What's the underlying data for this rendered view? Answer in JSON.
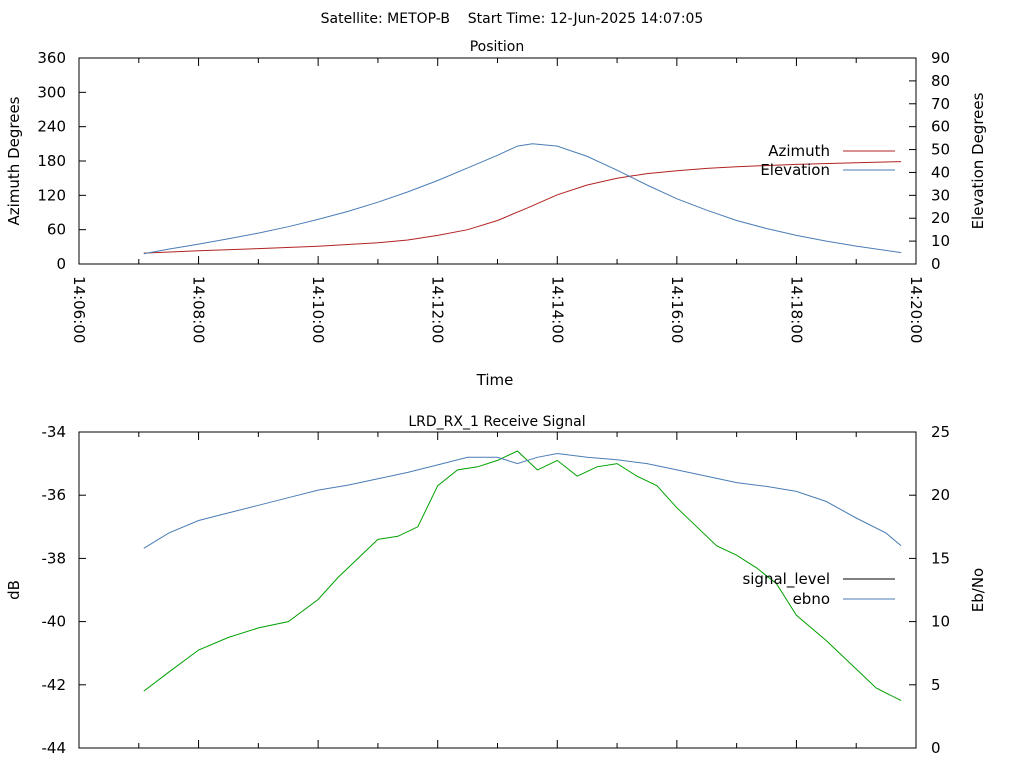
{
  "header": "Satellite: METOP-B    Start Time: 12-Jun-2025 14:07:05",
  "chart_data": [
    {
      "type": "line",
      "title": "Position",
      "xlabel": "Time",
      "ylabel": "Azimuth Degrees",
      "y2label": "Elevation Degrees",
      "x_ticks": [
        "14:06:00",
        "14:08:00",
        "14:10:00",
        "14:12:00",
        "14:14:00",
        "14:16:00",
        "14:18:00",
        "14:20:00"
      ],
      "xlim": [
        "14:06:00",
        "14:20:00"
      ],
      "ylim": [
        0,
        360
      ],
      "y_ticks": [
        0,
        60,
        120,
        180,
        240,
        300,
        360
      ],
      "y2lim": [
        0,
        90
      ],
      "y2_ticks": [
        0,
        10,
        20,
        30,
        40,
        50,
        60,
        70,
        80,
        90
      ],
      "legend_position": "right",
      "grid": false,
      "series": [
        {
          "name": "Azimuth",
          "axis": "y",
          "color": "#b22222",
          "x": [
            "14:07:05",
            "14:08:00",
            "14:09:00",
            "14:10:00",
            "14:11:00",
            "14:11:30",
            "14:12:00",
            "14:12:30",
            "14:13:00",
            "14:13:30",
            "14:14:00",
            "14:14:30",
            "14:15:00",
            "14:15:30",
            "14:16:00",
            "14:16:30",
            "14:17:00",
            "14:18:00",
            "14:19:00",
            "14:19:45"
          ],
          "values": [
            19,
            23,
            27,
            31,
            37,
            42,
            50,
            60,
            76,
            98,
            121,
            138,
            150,
            158,
            163,
            167,
            170,
            174,
            177,
            179
          ]
        },
        {
          "name": "Elevation",
          "axis": "y2",
          "color": "#4a7db5",
          "x": [
            "14:07:05",
            "14:07:30",
            "14:08:00",
            "14:08:30",
            "14:09:00",
            "14:09:30",
            "14:10:00",
            "14:10:30",
            "14:11:00",
            "14:11:30",
            "14:12:00",
            "14:12:30",
            "14:13:00",
            "14:13:20",
            "14:13:35",
            "14:14:00",
            "14:14:30",
            "14:15:00",
            "14:15:30",
            "14:16:00",
            "14:16:30",
            "14:17:00",
            "14:17:30",
            "14:18:00",
            "14:18:30",
            "14:19:00",
            "14:19:45"
          ],
          "values": [
            4.5,
            6.5,
            8.7,
            11.0,
            13.5,
            16.3,
            19.5,
            23.0,
            27.0,
            31.5,
            36.5,
            42.0,
            47.5,
            51.5,
            52.5,
            51.5,
            47.0,
            41.0,
            34.5,
            28.5,
            23.5,
            19.0,
            15.5,
            12.5,
            10.0,
            7.8,
            5.0
          ]
        }
      ]
    },
    {
      "type": "line",
      "title": "LRD_RX_1 Receive Signal",
      "xlabel": "",
      "ylabel": "dB",
      "y2label": "Eb/No",
      "x_ticks": [],
      "xlim": [
        "14:06:00",
        "14:20:00"
      ],
      "ylim": [
        -44,
        -34
      ],
      "y_ticks": [
        -44,
        -42,
        -40,
        -38,
        -36,
        -34
      ],
      "y2lim": [
        0,
        25
      ],
      "y2_ticks": [
        0,
        5,
        10,
        15,
        20,
        25
      ],
      "legend_position": "right",
      "grid": false,
      "series": [
        {
          "name": "signal_level",
          "axis": "y",
          "color": "#00a000",
          "legend_color": "#000000",
          "x": [
            "14:07:05",
            "14:07:30",
            "14:08:00",
            "14:08:30",
            "14:09:00",
            "14:09:30",
            "14:10:00",
            "14:10:20",
            "14:10:40",
            "14:11:00",
            "14:11:20",
            "14:11:40",
            "14:12:00",
            "14:12:20",
            "14:12:40",
            "14:13:00",
            "14:13:20",
            "14:13:40",
            "14:14:00",
            "14:14:20",
            "14:14:40",
            "14:15:00",
            "14:15:20",
            "14:15:40",
            "14:16:00",
            "14:16:20",
            "14:16:40",
            "14:17:00",
            "14:17:20",
            "14:17:40",
            "14:18:00",
            "14:18:30",
            "14:19:00",
            "14:19:20",
            "14:19:45"
          ],
          "values": [
            -42.2,
            -41.6,
            -40.9,
            -40.5,
            -40.2,
            -40.0,
            -39.3,
            -38.6,
            -38.0,
            -37.4,
            -37.3,
            -37.0,
            -35.7,
            -35.2,
            -35.1,
            -34.9,
            -34.6,
            -35.2,
            -34.9,
            -35.4,
            -35.1,
            -35.0,
            -35.4,
            -35.7,
            -36.4,
            -37.0,
            -37.6,
            -37.9,
            -38.3,
            -38.8,
            -39.8,
            -40.6,
            -41.5,
            -42.1,
            -42.5
          ]
        },
        {
          "name": "ebno",
          "axis": "y2",
          "color": "#4a7db5",
          "x": [
            "14:07:05",
            "14:07:30",
            "14:08:00",
            "14:08:30",
            "14:09:00",
            "14:09:30",
            "14:10:00",
            "14:10:30",
            "14:11:00",
            "14:11:30",
            "14:12:00",
            "14:12:30",
            "14:13:00",
            "14:13:20",
            "14:13:40",
            "14:14:00",
            "14:14:30",
            "14:15:00",
            "14:15:30",
            "14:16:00",
            "14:16:30",
            "14:17:00",
            "14:17:30",
            "14:18:00",
            "14:18:30",
            "14:19:00",
            "14:19:30",
            "14:19:45"
          ],
          "values": [
            15.8,
            17.0,
            18.0,
            18.6,
            19.2,
            19.8,
            20.4,
            20.8,
            21.3,
            21.8,
            22.4,
            23.0,
            23.0,
            22.5,
            23.0,
            23.3,
            23.0,
            22.8,
            22.5,
            22.0,
            21.5,
            21.0,
            20.7,
            20.3,
            19.5,
            18.2,
            17.0,
            16.0
          ]
        }
      ]
    }
  ]
}
